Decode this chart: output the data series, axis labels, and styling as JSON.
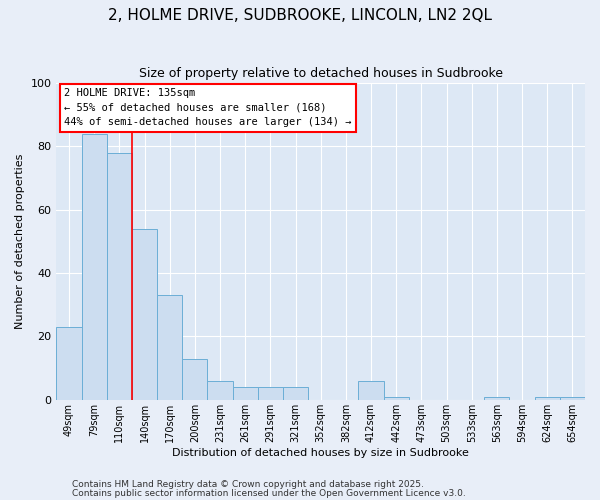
{
  "title": "2, HOLME DRIVE, SUDBROOKE, LINCOLN, LN2 2QL",
  "subtitle": "Size of property relative to detached houses in Sudbrooke",
  "xlabel": "Distribution of detached houses by size in Sudbrooke",
  "ylabel": "Number of detached properties",
  "bar_color": "#ccddf0",
  "bar_edge_color": "#6baed6",
  "fig_background_color": "#e8eef8",
  "ax_background_color": "#dde8f5",
  "grid_color": "#ffffff",
  "categories": [
    "49sqm",
    "79sqm",
    "110sqm",
    "140sqm",
    "170sqm",
    "200sqm",
    "231sqm",
    "261sqm",
    "291sqm",
    "321sqm",
    "352sqm",
    "382sqm",
    "412sqm",
    "442sqm",
    "473sqm",
    "503sqm",
    "533sqm",
    "563sqm",
    "594sqm",
    "624sqm",
    "654sqm"
  ],
  "values": [
    23,
    84,
    78,
    54,
    33,
    13,
    6,
    4,
    4,
    4,
    0,
    0,
    6,
    1,
    0,
    0,
    0,
    1,
    0,
    1,
    1
  ],
  "ylim": [
    0,
    100
  ],
  "yticks": [
    0,
    20,
    40,
    60,
    80,
    100
  ],
  "red_line_index": 2.5,
  "annotation_title": "2 HOLME DRIVE: 135sqm",
  "annotation_line1": "← 55% of detached houses are smaller (168)",
  "annotation_line2": "44% of semi-detached houses are larger (134) →",
  "footer1": "Contains HM Land Registry data © Crown copyright and database right 2025.",
  "footer2": "Contains public sector information licensed under the Open Government Licence v3.0."
}
